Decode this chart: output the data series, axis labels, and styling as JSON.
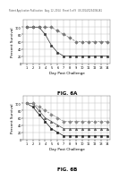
{
  "fig6a": {
    "title": "FIG. 6A",
    "xlabel": "Day Post Challenge",
    "ylabel": "Percent Survival",
    "series1": {
      "x": [
        1,
        2,
        3,
        4,
        5,
        6,
        7,
        8,
        9,
        10,
        11,
        12,
        13,
        14
      ],
      "y": [
        100,
        100,
        100,
        80,
        50,
        30,
        20,
        20,
        20,
        20,
        20,
        20,
        20,
        20
      ],
      "color": "#333333",
      "marker": "s",
      "linestyle": "-"
    },
    "series2": {
      "x": [
        1,
        2,
        3,
        4,
        5,
        6,
        7,
        8,
        9,
        10,
        11,
        12,
        13,
        14
      ],
      "y": [
        100,
        100,
        100,
        100,
        100,
        90,
        80,
        70,
        60,
        60,
        60,
        60,
        60,
        60
      ],
      "color": "#777777",
      "marker": "D",
      "linestyle": "--"
    },
    "ylim": [
      0,
      120
    ],
    "xlim": [
      0.5,
      14.5
    ],
    "yticks": [
      0,
      20,
      40,
      60,
      80,
      100
    ],
    "ytick_labels": [
      "0",
      "20",
      "40",
      "60",
      "80",
      "100"
    ],
    "xticks": [
      1,
      2,
      3,
      4,
      5,
      6,
      7,
      8,
      9,
      10,
      11,
      12,
      13,
      14
    ],
    "xtick_labels": [
      "1",
      "2",
      "3",
      "4",
      "5",
      "6",
      "7",
      "8",
      "9",
      "10",
      "11",
      "12",
      "13",
      "14"
    ]
  },
  "fig6b": {
    "title": "FIG. 6B",
    "xlabel": "Day Post Challenge",
    "ylabel": "Percent Survival",
    "series1": {
      "x": [
        1,
        2,
        3,
        4,
        5,
        6,
        7,
        8,
        9,
        10,
        11,
        12,
        13,
        14
      ],
      "y": [
        100,
        90,
        70,
        50,
        30,
        20,
        10,
        10,
        10,
        10,
        10,
        10,
        10,
        10
      ],
      "color": "#222222",
      "marker": "s",
      "linestyle": "-"
    },
    "series2": {
      "x": [
        1,
        2,
        3,
        4,
        5,
        6,
        7,
        8,
        9,
        10,
        11,
        12,
        13,
        14
      ],
      "y": [
        100,
        100,
        80,
        60,
        50,
        40,
        30,
        30,
        30,
        30,
        30,
        30,
        30,
        30
      ],
      "color": "#555555",
      "marker": "^",
      "linestyle": "-"
    },
    "series3": {
      "x": [
        1,
        2,
        3,
        4,
        5,
        6,
        7,
        8,
        9,
        10,
        11,
        12,
        13,
        14
      ],
      "y": [
        100,
        100,
        90,
        80,
        70,
        60,
        50,
        50,
        50,
        50,
        50,
        50,
        50,
        50
      ],
      "color": "#888888",
      "marker": "D",
      "linestyle": "--"
    },
    "ylim": [
      0,
      120
    ],
    "xlim": [
      0.5,
      14.5
    ],
    "yticks": [
      0,
      20,
      40,
      60,
      80,
      100
    ],
    "ytick_labels": [
      "0",
      "20",
      "40",
      "60",
      "80",
      "100"
    ],
    "xticks": [
      1,
      2,
      3,
      4,
      5,
      6,
      7,
      8,
      9,
      10,
      11,
      12,
      13,
      14
    ],
    "xtick_labels": [
      "1",
      "2",
      "3",
      "4",
      "5",
      "6",
      "7",
      "8",
      "9",
      "10",
      "11",
      "12",
      "13",
      "14"
    ]
  },
  "header_text": "Patent Application Publication   Aug. 12, 2014   Sheet 5 of 9   US 2014/0234384 A1",
  "bg_color": "#ffffff",
  "grid_color": "#bbbbbb",
  "label_fontsize": 3.0,
  "fig_label_fontsize": 4.0,
  "tick_fontsize": 2.5,
  "header_fontsize": 1.8,
  "markersize": 1.8,
  "linewidth": 0.5
}
